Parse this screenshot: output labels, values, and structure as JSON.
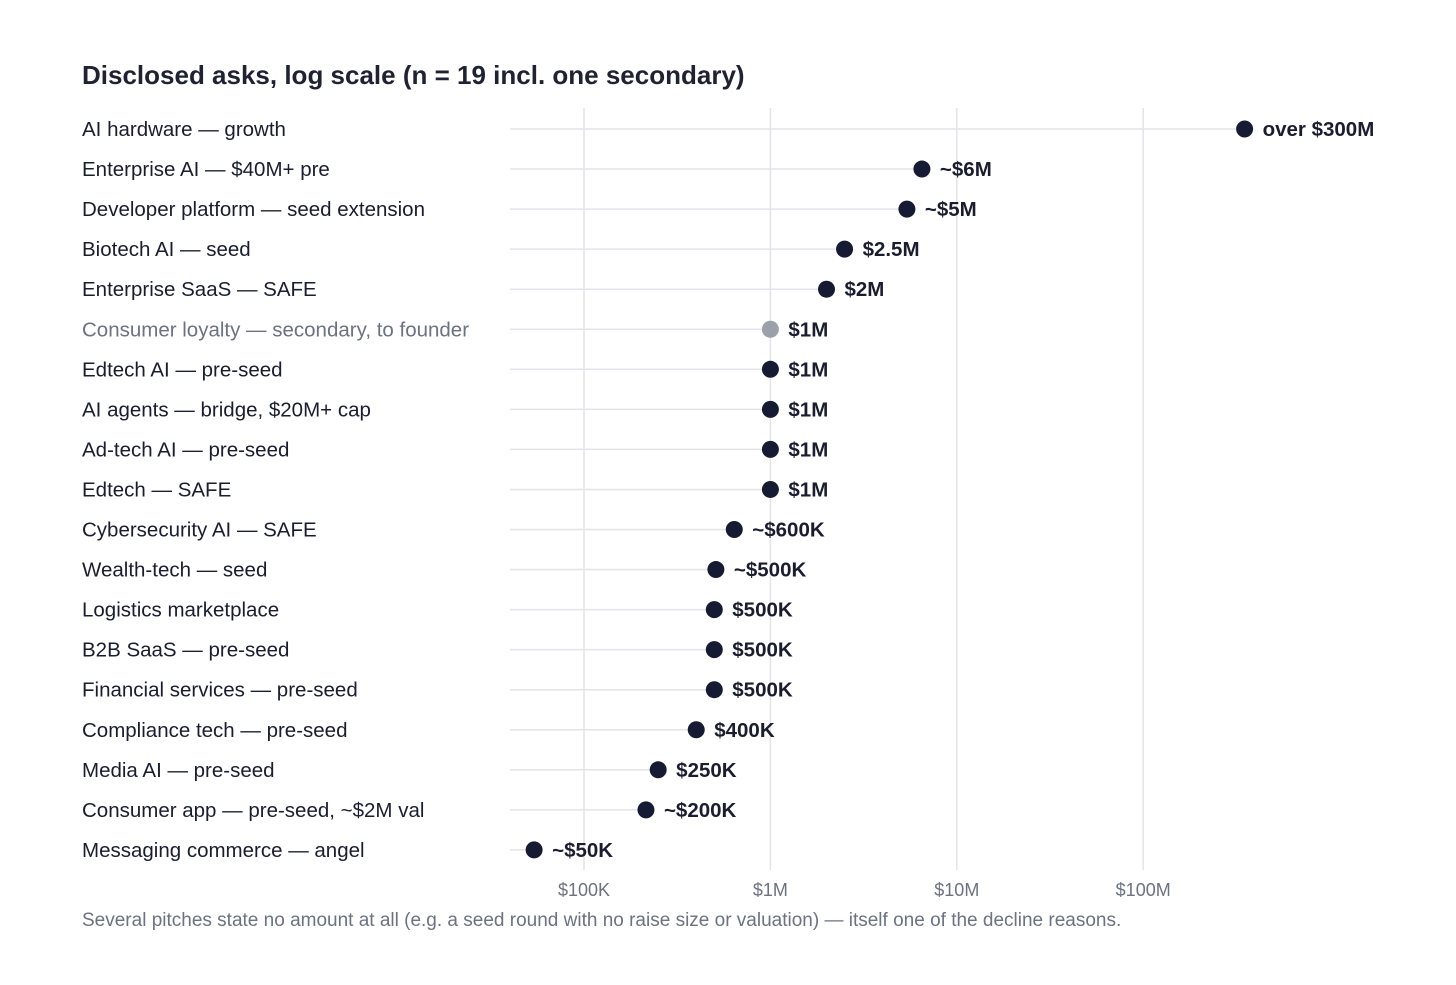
{
  "chart_data": {
    "type": "scatter",
    "title": "Disclosed asks, log scale (n = 19 incl. one secondary)",
    "x_scale": "log",
    "xlim": [
      36000,
      1000000000
    ],
    "xticks": [
      {
        "value": 100000,
        "label": "$100K"
      },
      {
        "value": 1000000,
        "label": "$1M"
      },
      {
        "value": 10000000,
        "label": "$10M"
      },
      {
        "value": 100000000,
        "label": "$100M"
      }
    ],
    "grid": true,
    "legend": "none",
    "colors": {
      "primary": "#161a33",
      "secondary": "#9ca0ab",
      "grid": "#e3e4e8",
      "label_secondary": "#6b7280"
    },
    "points": [
      {
        "label": "AI hardware — growth",
        "value": 350000000,
        "value_label": "over $300M",
        "secondary": false
      },
      {
        "label": "Enterprise AI — $40M+ pre",
        "value": 6500000,
        "value_label": "~$6M",
        "secondary": false
      },
      {
        "label": "Developer platform — seed extension",
        "value": 5400000,
        "value_label": "~$5M",
        "secondary": false
      },
      {
        "label": "Biotech AI — seed",
        "value": 2500000,
        "value_label": "$2.5M",
        "secondary": false
      },
      {
        "label": "Enterprise SaaS — SAFE",
        "value": 2000000,
        "value_label": "$2M",
        "secondary": false
      },
      {
        "label": "Consumer loyalty — secondary, to founder",
        "value": 1000000,
        "value_label": "$1M",
        "secondary": true
      },
      {
        "label": "Edtech AI — pre-seed",
        "value": 1000000,
        "value_label": "$1M",
        "secondary": false
      },
      {
        "label": "AI agents — bridge, $20M+ cap",
        "value": 1000000,
        "value_label": "$1M",
        "secondary": false
      },
      {
        "label": "Ad-tech AI — pre-seed",
        "value": 1000000,
        "value_label": "$1M",
        "secondary": false
      },
      {
        "label": "Edtech — SAFE",
        "value": 1000000,
        "value_label": "$1M",
        "secondary": false
      },
      {
        "label": "Cybersecurity AI — SAFE",
        "value": 640000,
        "value_label": "~$600K",
        "secondary": false
      },
      {
        "label": "Wealth-tech — seed",
        "value": 510000,
        "value_label": "~$500K",
        "secondary": false
      },
      {
        "label": "Logistics marketplace",
        "value": 500000,
        "value_label": "$500K",
        "secondary": false
      },
      {
        "label": "B2B SaaS — pre-seed",
        "value": 500000,
        "value_label": "$500K",
        "secondary": false
      },
      {
        "label": "Financial services — pre-seed",
        "value": 500000,
        "value_label": "$500K",
        "secondary": false
      },
      {
        "label": "Compliance tech — pre-seed",
        "value": 400000,
        "value_label": "$400K",
        "secondary": false
      },
      {
        "label": "Media AI — pre-seed",
        "value": 250000,
        "value_label": "$250K",
        "secondary": false
      },
      {
        "label": "Consumer app — pre-seed, ~$2M val",
        "value": 215000,
        "value_label": "~$200K",
        "secondary": false
      },
      {
        "label": "Messaging commerce — angel",
        "value": 54000,
        "value_label": "~$50K",
        "secondary": false
      }
    ],
    "footnote": "Several pitches state no amount at all (e.g. a seed round with no raise size or valuation) — itself one of the decline reasons."
  }
}
